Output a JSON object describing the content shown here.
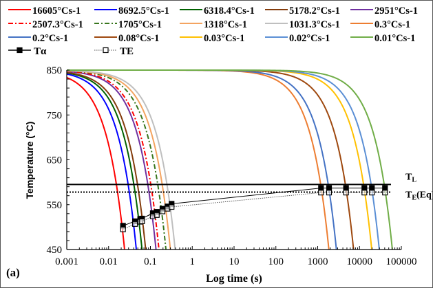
{
  "chart_data": {
    "type": "line",
    "panel_label": "(a)",
    "xlabel": "Log time (s)",
    "ylabel": "Temperature (°C)",
    "xscale": "log",
    "xlim": [
      0.001,
      100000
    ],
    "ylim": [
      450,
      850
    ],
    "xticks": [
      "0.001",
      "0.01",
      "0.1",
      "1",
      "10",
      "100",
      "1000",
      "10000",
      "100000"
    ],
    "yticks": [
      "450",
      "550",
      "650",
      "750",
      "850"
    ],
    "grid": false,
    "legend_position": "top",
    "series": [
      {
        "name": "16605°Cs-1",
        "color": "#ff0000",
        "dash": "solid",
        "points": [
          [
            0.001,
            833.4
          ],
          [
            0.0241,
            450
          ]
        ]
      },
      {
        "name": "8692.5°Cs-1",
        "color": "#0000ff",
        "dash": "solid",
        "points": [
          [
            0.001,
            841.3
          ],
          [
            0.046,
            450
          ]
        ]
      },
      {
        "name": "6318.4°Cs-1",
        "color": "#006100",
        "dash": "solid",
        "points": [
          [
            0.001,
            843.7
          ],
          [
            0.063,
            450
          ]
        ]
      },
      {
        "name": "5178.2°Cs-1",
        "color": "#843c0c",
        "dash": "solid",
        "points": [
          [
            0.001,
            844.8
          ],
          [
            0.077,
            450
          ]
        ]
      },
      {
        "name": "2951°Cs-1",
        "color": "#7030a0",
        "dash": "solid",
        "points": [
          [
            0.001,
            847
          ],
          [
            0.136,
            450
          ]
        ]
      },
      {
        "name": "2507.3°Cs-1",
        "color": "#ff0000",
        "dash": "dashdot",
        "points": [
          [
            0.001,
            847.5
          ],
          [
            0.16,
            450
          ]
        ]
      },
      {
        "name": "1705°Cs-1",
        "color": "#38761d",
        "dash": "dashdot",
        "points": [
          [
            0.001,
            848.3
          ],
          [
            0.235,
            450
          ]
        ]
      },
      {
        "name": "1318°Cs-1",
        "color": "#f4a460",
        "dash": "solid",
        "points": [
          [
            0.001,
            848.7
          ],
          [
            0.3,
            450
          ]
        ]
      },
      {
        "name": "1031.3°Cs-1",
        "color": "#bfbfbf",
        "dash": "solid",
        "points": [
          [
            0.001,
            849
          ],
          [
            0.39,
            450
          ]
        ]
      },
      {
        "name": "0.3°Cs-1",
        "color": "#ed7d31",
        "dash": "solid",
        "points": [
          [
            0.001,
            850
          ],
          [
            1850,
            450
          ]
        ]
      },
      {
        "name": "0.2°Cs-1",
        "color": "#4472c4",
        "dash": "solid",
        "points": [
          [
            0.001,
            850
          ],
          [
            2800,
            450
          ]
        ]
      },
      {
        "name": "0.08°Cs-1",
        "color": "#9e480e",
        "dash": "solid",
        "points": [
          [
            0.001,
            850
          ],
          [
            7200,
            450
          ]
        ]
      },
      {
        "name": "0.03°Cs-1",
        "color": "#ffc000",
        "dash": "solid",
        "points": [
          [
            0.001,
            850
          ],
          [
            19600,
            450
          ]
        ]
      },
      {
        "name": "0.02°Cs-1",
        "color": "#5b8fd5",
        "dash": "solid",
        "points": [
          [
            0.001,
            850
          ],
          [
            29700,
            450
          ]
        ]
      },
      {
        "name": "0.01°Cs-1",
        "color": "#70ad47",
        "dash": "solid",
        "points": [
          [
            0.001,
            850
          ],
          [
            61000,
            450
          ]
        ]
      }
    ],
    "markers": [
      {
        "name": "Tα",
        "style": "solid-filled-square",
        "x": [
          0.0221,
          0.0427,
          0.057,
          0.063,
          0.114,
          0.142,
          0.194,
          0.256,
          0.321,
          1200,
          1870,
          4760,
          13060,
          19800,
          40700
        ],
        "y": [
          503,
          513,
          518,
          519,
          531,
          534,
          541,
          546,
          552,
          587,
          587,
          587,
          587,
          587,
          587
        ]
      },
      {
        "name": "TE",
        "style": "dotted-open-square",
        "x": [
          0.0221,
          0.0427,
          0.057,
          0.063,
          0.114,
          0.142,
          0.194,
          0.256,
          0.321,
          1200,
          1870,
          4760,
          13060,
          19800,
          40700
        ],
        "y": [
          495,
          507,
          512,
          513,
          524,
          527,
          535,
          541,
          545,
          577,
          577,
          577,
          577,
          577,
          577
        ]
      }
    ],
    "reference_lines": [
      {
        "label_main": "T",
        "label_sub": "L",
        "label_suffix": "",
        "y": 595,
        "style": "solid"
      },
      {
        "label_main": "T",
        "label_sub": "E",
        "label_suffix": "(Eq)",
        "y": 578,
        "style": "dotted"
      }
    ]
  }
}
